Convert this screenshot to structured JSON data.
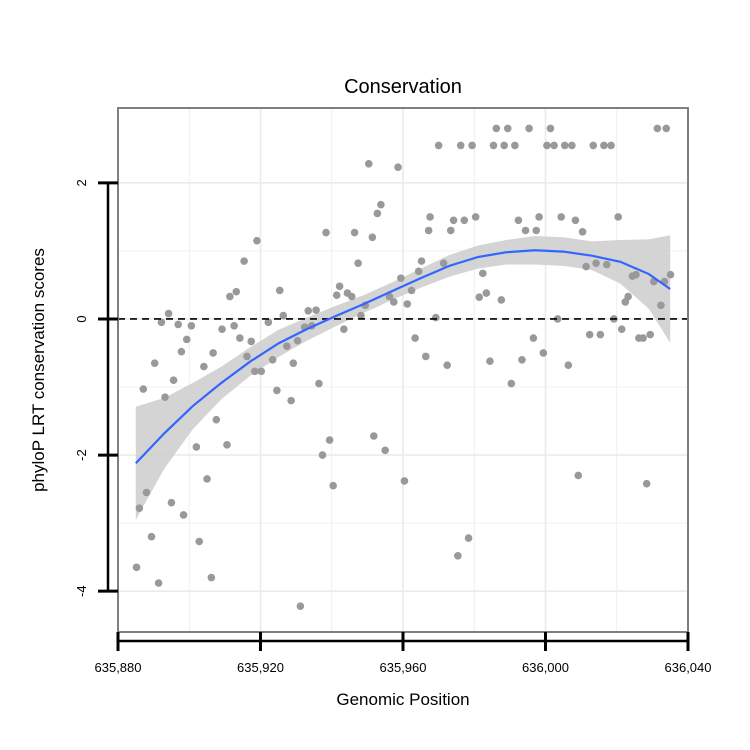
{
  "chart_data": {
    "type": "scatter",
    "title": "Conservation",
    "xlabel": "Genomic Position",
    "ylabel": "phyloP LRT conservation scores",
    "xlim": [
      635880,
      636040
    ],
    "ylim": [
      -4.6,
      3.1
    ],
    "x_ticks": [
      {
        "value": 635880,
        "label": "635,880"
      },
      {
        "value": 635920,
        "label": "635,920"
      },
      {
        "value": 635960,
        "label": "635,960"
      },
      {
        "value": 636000,
        "label": "636,000"
      },
      {
        "value": 636040,
        "label": "636,040"
      }
    ],
    "y_ticks": [
      {
        "value": -4,
        "label": "-4"
      },
      {
        "value": -2,
        "label": "-2"
      },
      {
        "value": 0,
        "label": "0"
      },
      {
        "value": 2,
        "label": "2"
      }
    ],
    "grid": true,
    "reference_line": {
      "y": 0,
      "style": "dashed"
    },
    "colors": {
      "points": "#999999",
      "smooth_line": "#3366ff",
      "confidence_band": "#cccccc",
      "panel_background": "#ffffff",
      "grid": "#ebebeb",
      "panel_border": "#7f7f7f"
    },
    "points": [
      [
        635885.2,
        -3.65
      ],
      [
        635886.0,
        -2.78
      ],
      [
        635887.1,
        -1.03
      ],
      [
        635888.0,
        -2.55
      ],
      [
        635889.4,
        -3.2
      ],
      [
        635890.3,
        -0.65
      ],
      [
        635891.4,
        -3.88
      ],
      [
        635892.2,
        -0.05
      ],
      [
        635893.2,
        -1.15
      ],
      [
        635894.2,
        0.08
      ],
      [
        635895.0,
        -2.7
      ],
      [
        635895.6,
        -0.9
      ],
      [
        635896.9,
        -0.08
      ],
      [
        635897.8,
        -0.48
      ],
      [
        635898.4,
        -2.88
      ],
      [
        635899.3,
        -0.3
      ],
      [
        635900.6,
        -0.1
      ],
      [
        635902.0,
        -1.88
      ],
      [
        635902.8,
        -3.27
      ],
      [
        635904.1,
        -0.7
      ],
      [
        635905.0,
        -2.35
      ],
      [
        635906.2,
        -3.8
      ],
      [
        635906.7,
        -0.5
      ],
      [
        635907.6,
        -1.48
      ],
      [
        635909.2,
        -0.15
      ],
      [
        635910.6,
        -1.85
      ],
      [
        635911.4,
        0.33
      ],
      [
        635912.6,
        -0.1
      ],
      [
        635913.2,
        0.4
      ],
      [
        635914.2,
        -0.28
      ],
      [
        635915.4,
        0.85
      ],
      [
        635916.2,
        -0.55
      ],
      [
        635917.4,
        -0.33
      ],
      [
        635918.4,
        -0.77
      ],
      [
        635919.0,
        1.15
      ],
      [
        635920.2,
        -0.77
      ],
      [
        635922.2,
        -0.05
      ],
      [
        635923.4,
        -0.6
      ],
      [
        635924.6,
        -1.05
      ],
      [
        635925.4,
        0.42
      ],
      [
        635926.4,
        0.05
      ],
      [
        635927.4,
        -0.4
      ],
      [
        635928.6,
        -1.2
      ],
      [
        635929.2,
        -0.65
      ],
      [
        635930.4,
        -0.32
      ],
      [
        635931.2,
        -4.22
      ],
      [
        635932.4,
        -0.12
      ],
      [
        635933.4,
        0.12
      ],
      [
        635934.4,
        -0.1
      ],
      [
        635935.6,
        0.13
      ],
      [
        635936.4,
        -0.95
      ],
      [
        635937.4,
        -2.0
      ],
      [
        635938.4,
        1.27
      ],
      [
        635939.4,
        -1.78
      ],
      [
        635940.4,
        -2.45
      ],
      [
        635941.4,
        0.35
      ],
      [
        635942.2,
        0.48
      ],
      [
        635943.4,
        -0.15
      ],
      [
        635944.4,
        0.38
      ],
      [
        635945.6,
        0.33
      ],
      [
        635946.4,
        1.27
      ],
      [
        635947.4,
        0.82
      ],
      [
        635948.2,
        0.05
      ],
      [
        635949.4,
        0.2
      ],
      [
        635950.4,
        2.28
      ],
      [
        635951.4,
        1.2
      ],
      [
        635951.8,
        -1.72
      ],
      [
        635952.8,
        1.55
      ],
      [
        635953.8,
        1.68
      ],
      [
        635955.0,
        -1.93
      ],
      [
        635956.2,
        0.33
      ],
      [
        635957.4,
        0.25
      ],
      [
        635958.6,
        2.23
      ],
      [
        635959.4,
        0.6
      ],
      [
        635960.4,
        -2.38
      ],
      [
        635961.2,
        0.22
      ],
      [
        635962.4,
        0.42
      ],
      [
        635963.4,
        -0.28
      ],
      [
        635964.4,
        0.7
      ],
      [
        635965.2,
        0.85
      ],
      [
        635966.4,
        -0.55
      ],
      [
        635967.2,
        1.3
      ],
      [
        635967.6,
        1.5
      ],
      [
        635969.2,
        0.02
      ],
      [
        635970.0,
        2.55
      ],
      [
        635971.4,
        0.82
      ],
      [
        635972.4,
        -0.68
      ],
      [
        635973.4,
        1.3
      ],
      [
        635974.2,
        1.45
      ],
      [
        635975.4,
        -3.48
      ],
      [
        635976.2,
        2.55
      ],
      [
        635977.2,
        1.45
      ],
      [
        635978.4,
        -3.22
      ],
      [
        635979.4,
        2.55
      ],
      [
        635980.4,
        1.5
      ],
      [
        635981.4,
        0.32
      ],
      [
        635982.4,
        0.67
      ],
      [
        635983.4,
        0.38
      ],
      [
        635984.4,
        -0.62
      ],
      [
        635985.4,
        2.55
      ],
      [
        635986.2,
        2.8
      ],
      [
        635987.6,
        0.28
      ],
      [
        635988.4,
        2.55
      ],
      [
        635989.4,
        2.8
      ],
      [
        635990.4,
        -0.95
      ],
      [
        635991.4,
        2.55
      ],
      [
        635992.4,
        1.45
      ],
      [
        635993.4,
        -0.6
      ],
      [
        635994.4,
        1.3
      ],
      [
        635995.4,
        2.8
      ],
      [
        635996.6,
        -0.28
      ],
      [
        635997.4,
        1.3
      ],
      [
        635998.2,
        1.5
      ],
      [
        635999.4,
        -0.5
      ],
      [
        636000.4,
        2.55
      ],
      [
        636001.4,
        2.8
      ],
      [
        636002.4,
        2.55
      ],
      [
        636003.4,
        0.0
      ],
      [
        636004.4,
        1.5
      ],
      [
        636005.4,
        2.55
      ],
      [
        636006.4,
        -0.68
      ],
      [
        636007.4,
        2.55
      ],
      [
        636008.4,
        1.45
      ],
      [
        636009.2,
        -2.3
      ],
      [
        636010.4,
        1.28
      ],
      [
        636011.4,
        0.77
      ],
      [
        636012.4,
        -0.23
      ],
      [
        636013.4,
        2.55
      ],
      [
        636014.2,
        0.82
      ],
      [
        636015.4,
        -0.23
      ],
      [
        636016.4,
        2.55
      ],
      [
        636017.2,
        0.8
      ],
      [
        636018.4,
        2.55
      ],
      [
        636019.2,
        0.0
      ],
      [
        636020.4,
        1.5
      ],
      [
        636021.4,
        -0.15
      ],
      [
        636022.4,
        0.25
      ],
      [
        636023.2,
        0.33
      ],
      [
        636024.4,
        0.63
      ],
      [
        636025.4,
        0.65
      ],
      [
        636026.2,
        -0.28
      ],
      [
        636027.4,
        -0.28
      ],
      [
        636028.4,
        -2.42
      ],
      [
        636029.4,
        -0.23
      ],
      [
        636030.4,
        0.55
      ],
      [
        636031.4,
        2.8
      ],
      [
        636032.4,
        0.2
      ],
      [
        636033.4,
        0.55
      ],
      [
        636033.9,
        2.8
      ],
      [
        636035.1,
        0.65
      ]
    ],
    "smooth_line": {
      "x": [
        635885,
        635893,
        635901,
        635909,
        635917,
        635925,
        635933,
        635941,
        635949,
        635957,
        635965,
        635973,
        635981,
        635989,
        635997,
        636005,
        636013,
        636021,
        636029,
        636035
      ],
      "y": [
        -2.12,
        -1.68,
        -1.28,
        -0.94,
        -0.63,
        -0.36,
        -0.15,
        0.04,
        0.22,
        0.41,
        0.6,
        0.78,
        0.91,
        0.98,
        1.01,
        0.99,
        0.93,
        0.84,
        0.66,
        0.44
      ],
      "lower": [
        -2.95,
        -2.2,
        -1.62,
        -1.18,
        -0.84,
        -0.56,
        -0.32,
        -0.11,
        0.09,
        0.28,
        0.46,
        0.62,
        0.74,
        0.8,
        0.8,
        0.78,
        0.72,
        0.52,
        0.15,
        -0.35
      ],
      "upper": [
        -1.29,
        -1.16,
        -0.94,
        -0.7,
        -0.42,
        -0.16,
        0.02,
        0.19,
        0.35,
        0.54,
        0.74,
        0.94,
        1.08,
        1.16,
        1.22,
        1.2,
        1.14,
        1.16,
        1.17,
        1.23
      ]
    }
  }
}
